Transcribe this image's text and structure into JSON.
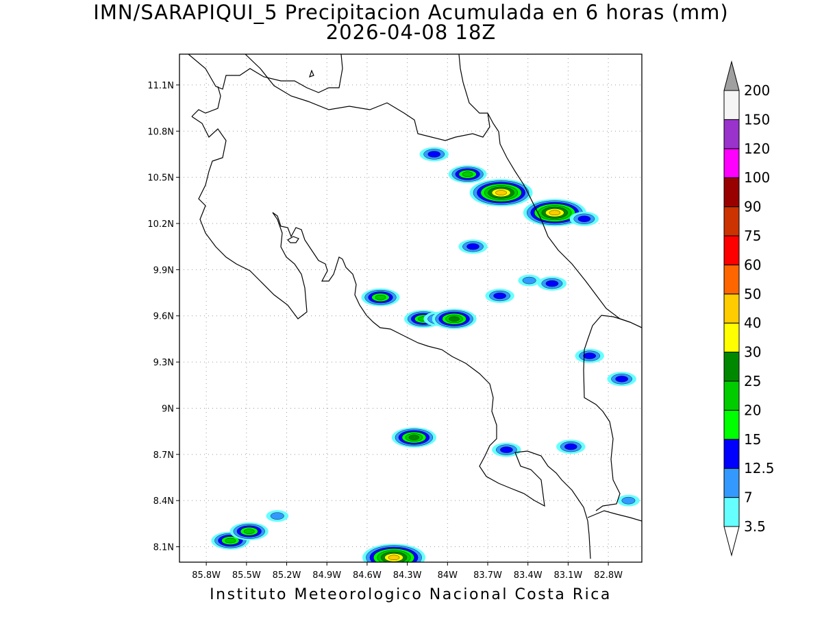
{
  "title_line1": "IMN/SARAPIQUI_5 Precipitacion Acumulada en 6 horas (mm)",
  "title_line2": "2026-04-08 18Z",
  "footer": "Instituto Meteorologico Nacional Costa Rica",
  "map": {
    "lon_range": [
      -86.0,
      -82.55
    ],
    "lat_range": [
      8.0,
      11.3
    ],
    "lat_ticks": [
      {
        "value": 11.1,
        "label": "11.1N"
      },
      {
        "value": 10.8,
        "label": "10.8N"
      },
      {
        "value": 10.5,
        "label": "10.5N"
      },
      {
        "value": 10.2,
        "label": "10.2N"
      },
      {
        "value": 9.9,
        "label": "9.9N"
      },
      {
        "value": 9.6,
        "label": "9.6N"
      },
      {
        "value": 9.3,
        "label": "9.3N"
      },
      {
        "value": 9.0,
        "label": "9N"
      },
      {
        "value": 8.7,
        "label": "8.7N"
      },
      {
        "value": 8.4,
        "label": "8.4N"
      },
      {
        "value": 8.1,
        "label": "8.1N"
      }
    ],
    "lon_ticks": [
      {
        "value": -85.8,
        "label": "85.8W"
      },
      {
        "value": -85.5,
        "label": "85.5W"
      },
      {
        "value": -85.2,
        "label": "85.2W"
      },
      {
        "value": -84.9,
        "label": "84.9W"
      },
      {
        "value": -84.6,
        "label": "84.6W"
      },
      {
        "value": -84.3,
        "label": "84.3W"
      },
      {
        "value": -84.0,
        "label": "84W"
      },
      {
        "value": -83.7,
        "label": "83.7W"
      },
      {
        "value": -83.4,
        "label": "83.4W"
      },
      {
        "value": -83.1,
        "label": "83.1W"
      },
      {
        "value": -82.8,
        "label": "82.8W"
      }
    ],
    "grid": "dotted"
  },
  "colorbar": {
    "levels": [
      "3.5",
      "7",
      "12.5",
      "15",
      "20",
      "25",
      "30",
      "40",
      "50",
      "60",
      "75",
      "90",
      "100",
      "120",
      "150",
      "200"
    ],
    "colors": [
      "#66ffff",
      "#3399ff",
      "#0000ff",
      "#00ff00",
      "#00cc00",
      "#008800",
      "#ffff00",
      "#ffcc00",
      "#ff6600",
      "#ff0000",
      "#cc3300",
      "#990000",
      "#ff00ff",
      "#9933cc",
      "#f5f5f5"
    ],
    "over_color": "#a0a0a0",
    "under_color": "#ffffff"
  },
  "precip_cells": [
    {
      "lon": -83.6,
      "lat": 10.4,
      "max": 40
    },
    {
      "lon": -83.2,
      "lat": 10.27,
      "max": 40
    },
    {
      "lon": -83.85,
      "lat": 10.52,
      "max": 20
    },
    {
      "lon": -84.1,
      "lat": 10.65,
      "max": 12.5
    },
    {
      "lon": -82.98,
      "lat": 10.23,
      "max": 12.5
    },
    {
      "lon": -83.81,
      "lat": 10.05,
      "max": 12.5
    },
    {
      "lon": -84.5,
      "lat": 9.72,
      "max": 20
    },
    {
      "lon": -84.18,
      "lat": 9.58,
      "max": 20
    },
    {
      "lon": -84.07,
      "lat": 9.58,
      "max": 12.5
    },
    {
      "lon": -83.95,
      "lat": 9.58,
      "max": 25
    },
    {
      "lon": -83.61,
      "lat": 9.73,
      "max": 12.5
    },
    {
      "lon": -83.39,
      "lat": 9.83,
      "max": 7
    },
    {
      "lon": -83.22,
      "lat": 9.81,
      "max": 12.5
    },
    {
      "lon": -82.94,
      "lat": 9.34,
      "max": 12.5
    },
    {
      "lon": -82.7,
      "lat": 9.19,
      "max": 12.5
    },
    {
      "lon": -84.25,
      "lat": 8.81,
      "max": 25
    },
    {
      "lon": -83.56,
      "lat": 8.73,
      "max": 12.5
    },
    {
      "lon": -83.08,
      "lat": 8.75,
      "max": 12.5
    },
    {
      "lon": -82.65,
      "lat": 8.4,
      "max": 7
    },
    {
      "lon": -85.62,
      "lat": 8.14,
      "max": 20
    },
    {
      "lon": -85.48,
      "lat": 8.2,
      "max": 20
    },
    {
      "lon": -85.27,
      "lat": 8.3,
      "max": 7
    },
    {
      "lon": -84.4,
      "lat": 8.03,
      "max": 40
    }
  ]
}
